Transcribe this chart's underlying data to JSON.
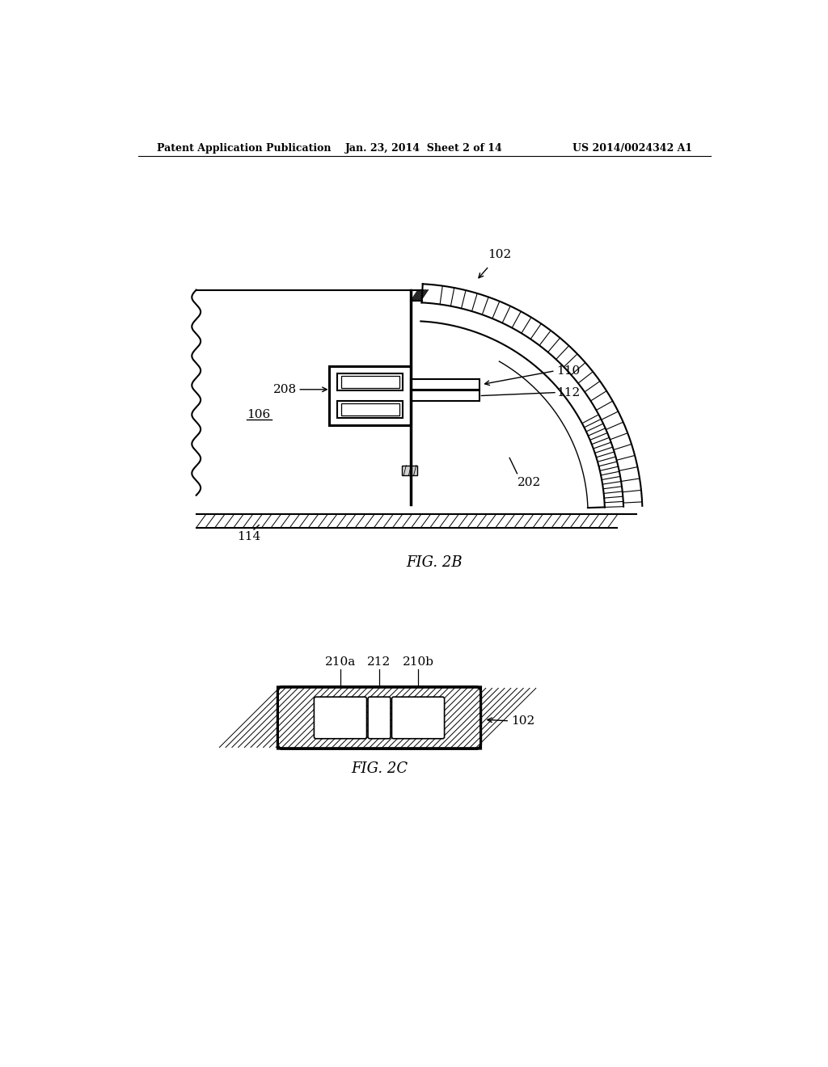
{
  "bg_color": "#ffffff",
  "line_color": "#000000",
  "header_left": "Patent Application Publication",
  "header_mid": "Jan. 23, 2014  Sheet 2 of 14",
  "header_right": "US 2014/0024342 A1",
  "fig2b_label": "FIG. 2B",
  "fig2c_label": "FIG. 2C",
  "labels": {
    "102": "102",
    "110": "110",
    "112": "112",
    "208": "208",
    "106": "106",
    "202": "202",
    "114": "114",
    "210a": "210a",
    "212": "212",
    "210b": "210b",
    "102b": "102"
  }
}
